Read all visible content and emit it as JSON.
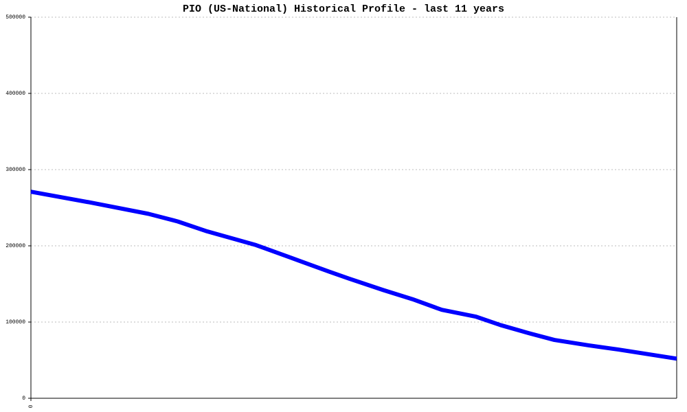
{
  "chart_data": {
    "type": "line",
    "title": "PIO (US-National) Historical Profile - last 11 years",
    "x": [
      0,
      12,
      24,
      30,
      36,
      46,
      53,
      61,
      65,
      72,
      78,
      84,
      91,
      96,
      102,
      107,
      114,
      120,
      132
    ],
    "series": [
      {
        "color": "#0000ff",
        "values": [
          271000,
          257000,
          242000,
          232000,
          219000,
          201000,
          184700,
          166000,
          157000,
          142000,
          130000,
          116000,
          107000,
          96000,
          85000,
          76500,
          69400,
          64000,
          52000
        ]
      }
    ],
    "xlim": [
      0,
      132
    ],
    "xticks": [
      0
    ],
    "ylim": [
      0,
      500000
    ],
    "yticks": [
      0,
      100000,
      200000,
      300000,
      400000,
      500000
    ],
    "grid": true
  }
}
